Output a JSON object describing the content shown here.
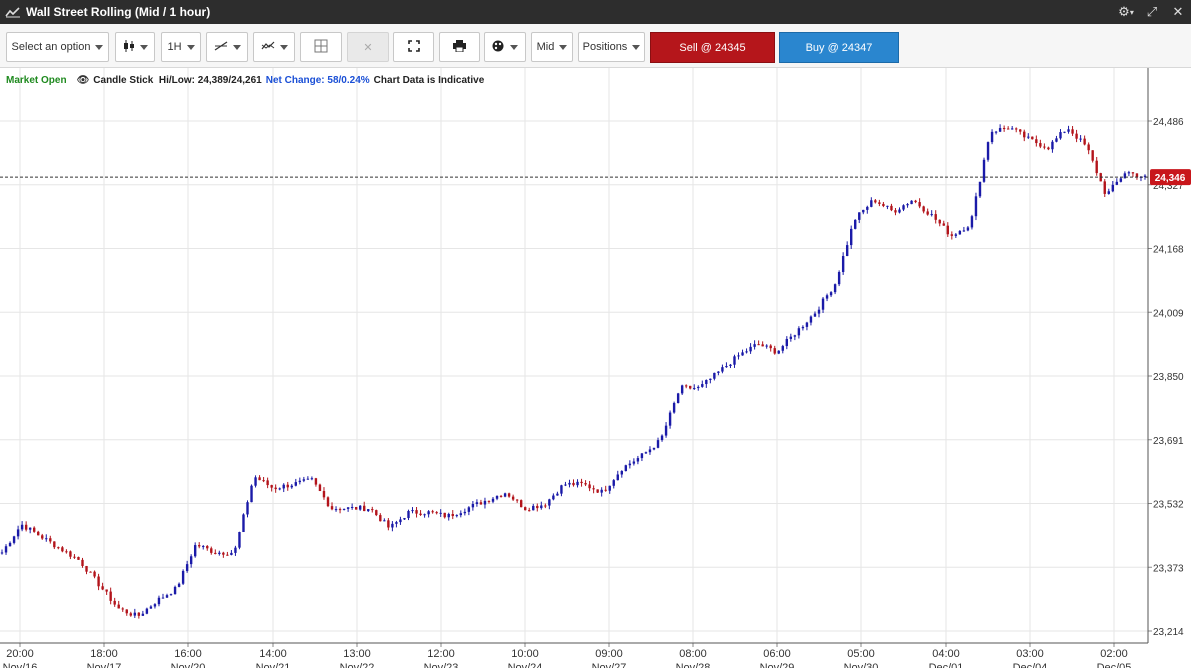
{
  "window": {
    "title": "Wall Street Rolling (Mid / 1 hour)"
  },
  "toolbar": {
    "select_option": "Select an option",
    "timeframe": "1H",
    "price_type": "Mid",
    "positions": "Positions",
    "sell_label": "Sell @ 24345",
    "buy_label": "Buy @ 24347"
  },
  "status": {
    "market": "Market Open",
    "chart_type": "Candle Stick",
    "hilow_label": "Hi/Low:",
    "hilow_value": "24,389/24,261",
    "net_change_label": "Net Change:",
    "net_change_value": "58/0.24%",
    "disclaimer": "Chart Data is Indicative"
  },
  "colors": {
    "up": "#1a1aa8",
    "down": "#b3141b",
    "grid": "#e6e6e6",
    "price_marker": "#c8161b"
  },
  "chart_data": {
    "type": "candlestick",
    "ylim": [
      23180,
      24580
    ],
    "y_ticks": [
      "24,486",
      "24,327",
      "24,168",
      "24,009",
      "23,850",
      "23,691",
      "23,532",
      "23,373",
      "23,214"
    ],
    "y_tick_values": [
      24486,
      24327,
      24168,
      24009,
      23850,
      23691,
      23532,
      23373,
      23214
    ],
    "current_price": 24346,
    "current_price_label": "24,346",
    "x_time_labels": [
      "20:00",
      "18:00",
      "16:00",
      "14:00",
      "13:00",
      "12:00",
      "10:00",
      "09:00",
      "08:00",
      "06:00",
      "05:00",
      "04:00",
      "03:00",
      "02:00"
    ],
    "x_date_labels": [
      "Nov/16",
      "Nov/17",
      "Nov/20",
      "Nov/21",
      "Nov/22",
      "Nov/23",
      "Nov/24",
      "Nov/27",
      "Nov/28",
      "Nov/29",
      "Nov/30",
      "Dec/01",
      "Dec/04",
      "Dec/05"
    ],
    "approx_close_path": [
      23410,
      23480,
      23450,
      23420,
      23390,
      23330,
      23270,
      23250,
      23290,
      23320,
      23430,
      23410,
      23410,
      23600,
      23570,
      23580,
      23590,
      23520,
      23520,
      23520,
      23470,
      23510,
      23510,
      23500,
      23520,
      23540,
      23560,
      23520,
      23530,
      23580,
      23580,
      23560,
      23620,
      23650,
      23690,
      23820,
      23820,
      23860,
      23900,
      23930,
      23910,
      23960,
      24010,
      24080,
      24240,
      24290,
      24260,
      24290,
      24250,
      24200,
      24230,
      24460,
      24470,
      24440,
      24420,
      24470,
      24420,
      24300,
      24360,
      24345
    ]
  }
}
